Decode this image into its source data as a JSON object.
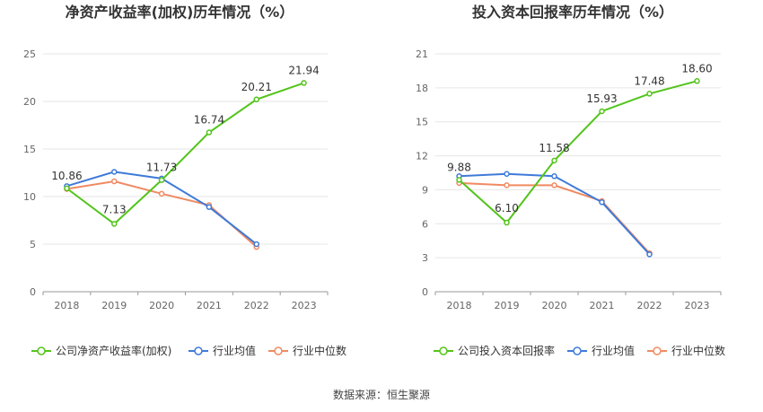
{
  "footer": {
    "source": "数据来源：恒生聚源"
  },
  "chart_data": [
    {
      "type": "line",
      "title": "净资产收益率(加权)历年情况（%）",
      "categories": [
        "2018",
        "2019",
        "2020",
        "2021",
        "2022",
        "2023"
      ],
      "ylim": [
        0,
        25
      ],
      "yticks": [
        0,
        5,
        10,
        15,
        20,
        25
      ],
      "grid": true,
      "legend_position": "bottom",
      "series": [
        {
          "name": "公司净资产收益率(加权)",
          "color": "#52c41a",
          "values": [
            10.86,
            7.13,
            11.73,
            16.74,
            20.21,
            21.94
          ],
          "labels": true
        },
        {
          "name": "行业均值",
          "color": "#3f7ad8",
          "values": [
            11.1,
            12.6,
            11.9,
            8.9,
            5.0,
            null
          ],
          "labels": false
        },
        {
          "name": "行业中位数",
          "color": "#f08a62",
          "values": [
            10.8,
            11.6,
            10.3,
            9.1,
            4.7,
            null
          ],
          "labels": false
        }
      ]
    },
    {
      "type": "line",
      "title": "投入资本回报率历年情况（%）",
      "categories": [
        "2018",
        "2019",
        "2020",
        "2021",
        "2022",
        "2023"
      ],
      "ylim": [
        0,
        21
      ],
      "yticks": [
        0,
        3,
        6,
        9,
        12,
        15,
        18,
        21
      ],
      "grid": true,
      "legend_position": "bottom",
      "series": [
        {
          "name": "公司投入资本回报率",
          "color": "#52c41a",
          "values": [
            9.88,
            6.1,
            11.58,
            15.93,
            17.48,
            18.6
          ],
          "labels": true
        },
        {
          "name": "行业均值",
          "color": "#3f7ad8",
          "values": [
            10.2,
            10.4,
            10.2,
            7.9,
            3.3,
            null
          ],
          "labels": false
        },
        {
          "name": "行业中位数",
          "color": "#f08a62",
          "values": [
            9.6,
            9.4,
            9.4,
            8.0,
            3.4,
            null
          ],
          "labels": false
        }
      ]
    }
  ]
}
